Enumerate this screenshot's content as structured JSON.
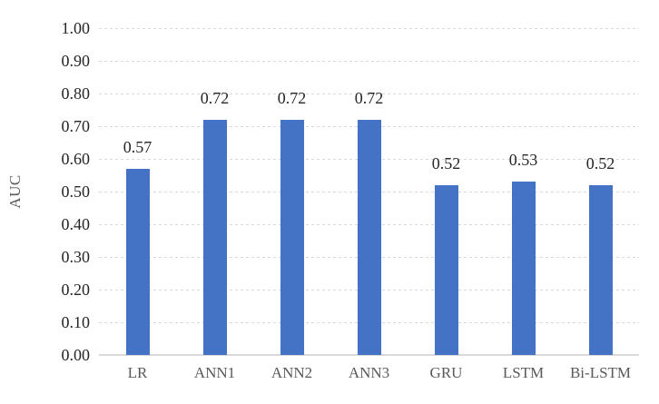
{
  "chart_data": {
    "type": "bar",
    "title": "",
    "xlabel": "",
    "ylabel": "AUC",
    "categories": [
      "LR",
      "ANN1",
      "ANN2",
      "ANN3",
      "GRU",
      "LSTM",
      "Bi-LSTM"
    ],
    "values": [
      0.57,
      0.72,
      0.72,
      0.72,
      0.52,
      0.53,
      0.52
    ],
    "data_labels": [
      "0.57",
      "0.72",
      "0.72",
      "0.72",
      "0.52",
      "0.53",
      "0.52"
    ],
    "ylim": [
      0,
      1
    ],
    "ytick_step": 0.1,
    "yticks": [
      "0.00",
      "0.10",
      "0.20",
      "0.30",
      "0.40",
      "0.50",
      "0.60",
      "0.70",
      "0.80",
      "0.90",
      "1.00"
    ],
    "grid": "horizontal-dashed",
    "legend": "none",
    "colors": {
      "bar": "#4472C4",
      "gridline": "#D9D9D9",
      "axis_line": "#D9D9D9",
      "ytick_text": "#262626",
      "data_label_text": "#262626",
      "xtick_text": "#595959",
      "ylabel_text": "#595959"
    }
  }
}
